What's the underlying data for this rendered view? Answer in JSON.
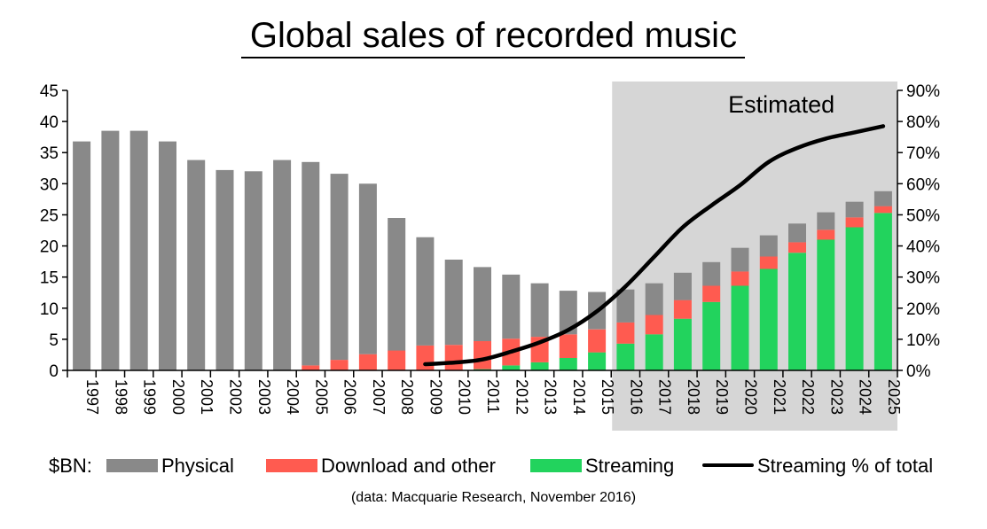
{
  "chart_data": {
    "type": "bar",
    "stacked": true,
    "title": "Global sales of recorded music",
    "unit_label": "$BN:",
    "source": "(data: Macquarie Research, November 2016)",
    "estimated_label": "Estimated",
    "estimated_range": [
      "2016",
      "2025"
    ],
    "categories": [
      "1997",
      "1998",
      "1999",
      "2000",
      "2001",
      "2002",
      "2003",
      "2004",
      "2005",
      "2006",
      "2007",
      "2008",
      "2009",
      "2010",
      "2011",
      "2012",
      "2013",
      "2014",
      "2015",
      "2016",
      "2017",
      "2018",
      "2019",
      "2020",
      "2021",
      "2022",
      "2023",
      "2024",
      "2025"
    ],
    "series": [
      {
        "name": "Streaming",
        "color": "#22d35d",
        "values": [
          0,
          0,
          0,
          0,
          0,
          0,
          0,
          0,
          0,
          0,
          0,
          0,
          0,
          0,
          0.2,
          0.8,
          1.3,
          2.0,
          2.9,
          4.3,
          5.8,
          8.3,
          11.0,
          13.6,
          16.3,
          18.9,
          21.0,
          23.0,
          25.3
        ]
      },
      {
        "name": "Download and other",
        "color": "#ff5b50",
        "values": [
          0,
          0,
          0,
          0,
          0,
          0,
          0,
          0,
          0.8,
          1.7,
          2.6,
          3.2,
          4.0,
          4.1,
          4.5,
          4.3,
          4.1,
          3.8,
          3.7,
          3.4,
          3.1,
          3.0,
          2.6,
          2.3,
          2.0,
          1.7,
          1.6,
          1.6,
          1.1
        ]
      },
      {
        "name": "Physical",
        "color": "#898989",
        "values": [
          36.8,
          38.5,
          38.5,
          36.8,
          33.8,
          32.2,
          32.0,
          33.8,
          32.7,
          29.9,
          27.4,
          21.3,
          17.4,
          13.7,
          11.9,
          10.3,
          8.6,
          7.0,
          6.0,
          5.3,
          5.1,
          4.4,
          3.8,
          3.8,
          3.4,
          3.0,
          2.8,
          2.5,
          2.4
        ]
      }
    ],
    "line_series": {
      "name": "Streaming % of total",
      "color": "#000000",
      "axis": "right",
      "categories": [
        "2009",
        "2010",
        "2011",
        "2012",
        "2013",
        "2014",
        "2015",
        "2016",
        "2017",
        "2018",
        "2019",
        "2020",
        "2021",
        "2022",
        "2023",
        "2024",
        "2025"
      ],
      "values": [
        2.0,
        2.5,
        3.5,
        6.0,
        9.0,
        13.0,
        19.0,
        27.0,
        36.5,
        46.0,
        53.0,
        59.5,
        67.0,
        71.5,
        74.5,
        76.5,
        78.5
      ]
    },
    "yaxis_left": {
      "min": 0,
      "max": 45,
      "ticks": [
        "0",
        "5",
        "10",
        "15",
        "20",
        "25",
        "30",
        "35",
        "40",
        "45"
      ]
    },
    "yaxis_right": {
      "min": 0,
      "max": 90,
      "ticks": [
        "0%",
        "10%",
        "20%",
        "30%",
        "40%",
        "50%",
        "60%",
        "70%",
        "80%",
        "90%"
      ]
    },
    "grid": false,
    "legend_position": "bottom"
  }
}
